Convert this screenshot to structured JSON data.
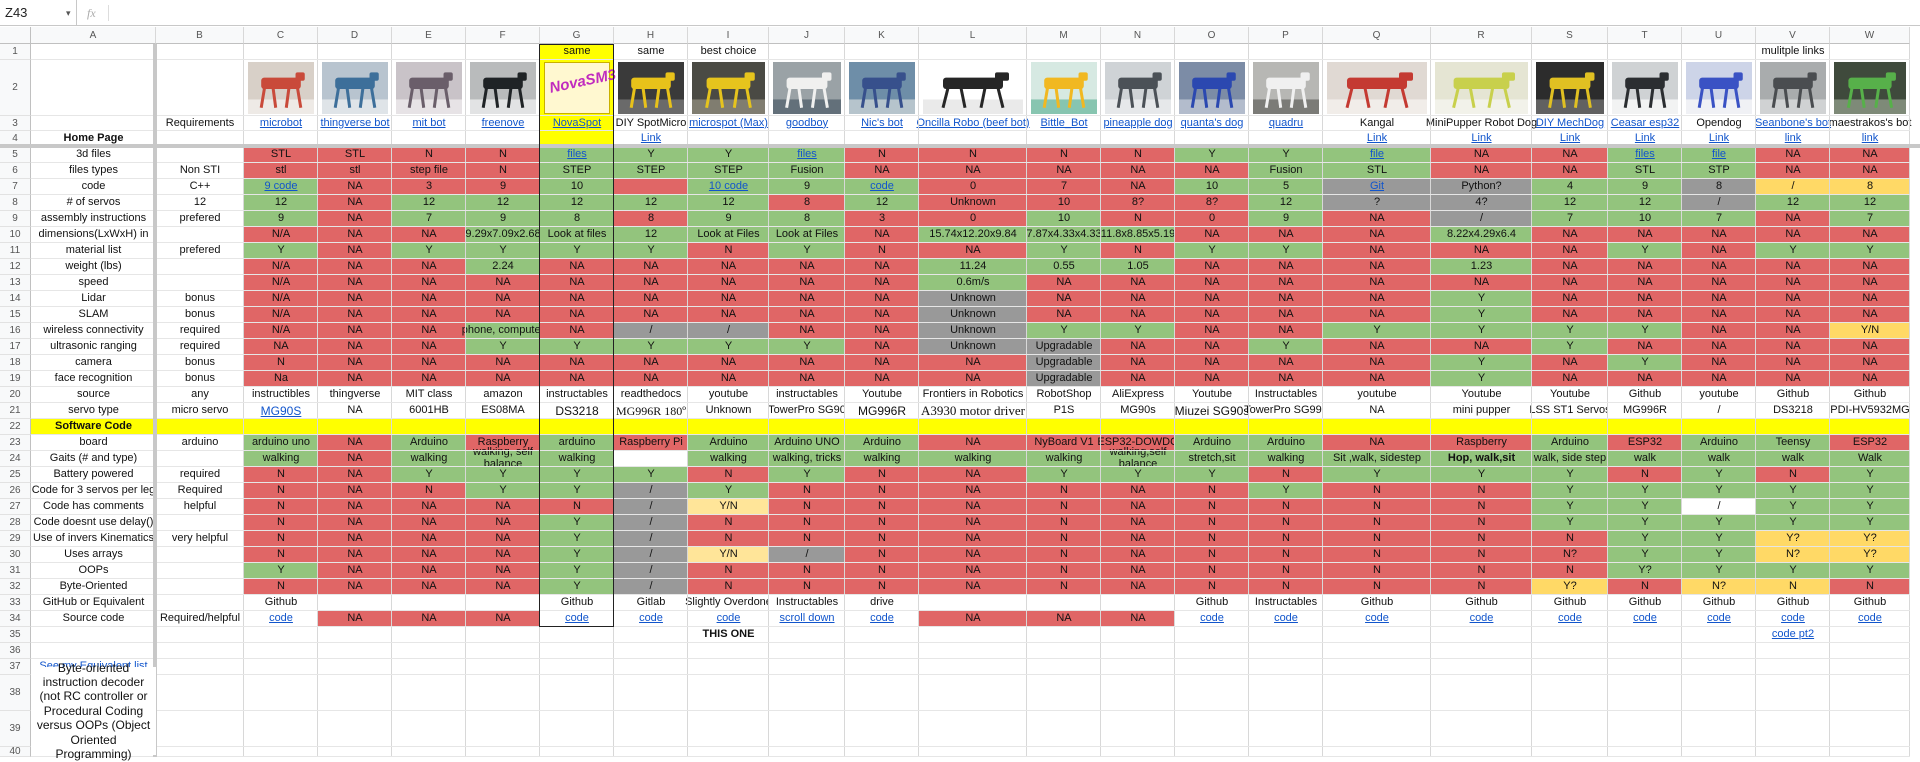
{
  "name_box": "Z43",
  "fx_label": "fx",
  "colors": {
    "red": "#e06666",
    "green": "#93c47d",
    "yellow": "#ffff00",
    "gray": "#999999",
    "light_yellow": "#ffe599",
    "orange_yellow": "#ffd966",
    "white": "#ffffff",
    "link": "#1155cc",
    "header_bg": "#f8f9fa",
    "selection": "#1a73e8"
  },
  "columns": [
    "A",
    "B",
    "C",
    "D",
    "E",
    "F",
    "G",
    "H",
    "I",
    "J",
    "K",
    "L",
    "M",
    "N",
    "O",
    "P",
    "Q",
    "R",
    "S",
    "T",
    "U",
    "V",
    "W"
  ],
  "rows": [
    "1",
    "2",
    "3",
    "4",
    "5",
    "6",
    "7",
    "8",
    "9",
    "10",
    "11",
    "12",
    "13",
    "14",
    "15",
    "16",
    "17",
    "18",
    "19",
    "20",
    "21",
    "22",
    "23",
    "24",
    "25",
    "26",
    "27",
    "28",
    "29",
    "30",
    "31",
    "32",
    "33",
    "34",
    "35",
    "36",
    "37",
    "38",
    "39",
    "40"
  ],
  "row1": {
    "G": "same",
    "H": "same",
    "I": "best choice",
    "V": "mulitple links"
  },
  "row2_images": {
    "C": "photo-robot-white-red",
    "D": "photo-robot-blue-frame",
    "E": "photo-robot-gray-legs",
    "F": "photo-robot-black",
    "G": "novaspot-logo",
    "H": "photo-robot-yellow-black",
    "I": "photo-robot-yellow-legs",
    "J": "photo-robot-white-dog",
    "K": "photo-robot-hand-held",
    "L": "photo-robot-oncilla",
    "M": "photo-robot-bittle",
    "N": "photo-robot-gray-dog",
    "O": "photo-robot-blue-dog",
    "P": "photo-robot-white-frame",
    "Q": "photo-robot-white-red-large",
    "R": "photo-robot-minipupper",
    "S": "photo-robot-mechdog",
    "T": "photo-robot-black-white",
    "U": "photo-robot-blue-white",
    "V": "photo-robot-dark-gray",
    "W": "photo-robot-green-dog"
  },
  "novaspot_logo_text": "NovaSM3",
  "row3": {
    "B": "Requirements",
    "C": "microbot",
    "D": "thingverse bot",
    "E": "mit bot",
    "F": "freenove",
    "G": "NovaSpot",
    "H": "DIY SpotMicro",
    "I": "microspot (Max)",
    "J": "goodboy",
    "K": "Nic's bot",
    "L": "Oncilla Robo (beef bot)",
    "M": "Bittle_Bot",
    "N": "pineapple dog",
    "O": "quanta's dog",
    "P": "quadru",
    "Q": "Kangal",
    "R": "MiniPupper Robot Dog",
    "S": "DIY MechDog",
    "T": "Ceasar esp32",
    "U": "Opendog",
    "V": "Seanbone's bot",
    "W": "maestrakos's bot"
  },
  "row4": {
    "A": "Home Page",
    "H": "Link",
    "Q": "Link",
    "R": "Link",
    "S": "Link",
    "T": "Link",
    "U": "Link",
    "V": "link",
    "W": "link"
  },
  "row5": {
    "A": "3d files",
    "C": "STL",
    "D": "STL",
    "E": "N",
    "F": "N",
    "G": "files",
    "H": "Y",
    "I": "Y",
    "J": "files",
    "K": "N",
    "L": "N",
    "M": "N",
    "N": "N",
    "O": "Y",
    "P": "Y",
    "Q": "file",
    "R": "NA",
    "S": "NA",
    "T": "files",
    "U": "file",
    "V": "NA",
    "W": "NA"
  },
  "row6": {
    "A": "files types",
    "B": "Non STI",
    "C": "stl",
    "D": "stl",
    "E": "step file",
    "F": "N",
    "G": "STEP",
    "H": "STEP",
    "I": "STEP",
    "J": "Fusion",
    "K": "NA",
    "L": "NA",
    "M": "NA",
    "N": "NA",
    "O": "NA",
    "P": "Fusion",
    "Q": "STL",
    "R": "NA",
    "S": "NA",
    "T": "STL",
    "U": "STP",
    "V": "NA",
    "W": "NA"
  },
  "row7": {
    "A": "code",
    "B": "C++",
    "C": "9 code",
    "D": "NA",
    "E": "3",
    "F": "9",
    "G": "10",
    "I": "10 code",
    "J": "9",
    "K": "code",
    "L": "0",
    "M": "7",
    "N": "NA",
    "O": "10",
    "P": "5",
    "Q": "Git",
    "R": "Python?",
    "S": "4",
    "T": "9",
    "U": "8",
    "V": "/",
    "W": "8"
  },
  "row8": {
    "A": "# of servos",
    "B": "12",
    "C": "12",
    "D": "NA",
    "E": "12",
    "F": "12",
    "G": "12",
    "H": "12",
    "I": "12",
    "J": "8",
    "K": "12",
    "L": "Unknown",
    "M": "10",
    "N": "8?",
    "O": "8?",
    "P": "12",
    "Q": "?",
    "R": "4?",
    "S": "12",
    "T": "12",
    "U": "/",
    "V": "12",
    "W": "12"
  },
  "row9": {
    "A": "assembly instructions",
    "B": "prefered",
    "C": "9",
    "D": "NA",
    "E": "7",
    "F": "9",
    "G": "8",
    "H": "8",
    "I": "9",
    "J": "8",
    "K": "3",
    "L": "0",
    "M": "10",
    "N": "N",
    "O": "0",
    "P": "9",
    "Q": "NA",
    "R": "/",
    "S": "7",
    "T": "10",
    "U": "7",
    "V": "NA",
    "W": "7"
  },
  "row10": {
    "A": "dimensions(LxWxH) in",
    "C": "N/A",
    "D": "NA",
    "E": "NA",
    "F": "9.29x7.09x2.68",
    "G": "Look at files",
    "H": "12",
    "I": "Look at Files",
    "J": "Look at Files",
    "K": "NA",
    "L": "15.74x12.20x9.84",
    "M": "7.87x4.33x4.33",
    "N": "11.8x8.85x5.19",
    "O": "NA",
    "P": "NA",
    "Q": "NA",
    "R": "8.22x4.29x6.4",
    "S": "NA",
    "T": "NA",
    "U": "NA",
    "V": "NA",
    "W": "NA"
  },
  "row11": {
    "A": "material list",
    "B": "prefered",
    "C": "Y",
    "D": "NA",
    "E": "Y",
    "F": "Y",
    "G": "Y",
    "H": "Y",
    "I": "N",
    "J": "Y",
    "K": "N",
    "L": "NA",
    "M": "Y",
    "N": "N",
    "O": "Y",
    "P": "Y",
    "Q": "NA",
    "R": "NA",
    "S": "NA",
    "T": "Y",
    "U": "NA",
    "V": "Y",
    "W": "Y"
  },
  "row12": {
    "A": "weight (lbs)",
    "C": "N/A",
    "D": "NA",
    "E": "NA",
    "F": "2.24",
    "G": "NA",
    "H": "NA",
    "I": "NA",
    "J": "NA",
    "K": "NA",
    "L": "11.24",
    "M": "0.55",
    "N": "1.05",
    "O": "NA",
    "P": "NA",
    "Q": "NA",
    "R": "1.23",
    "S": "NA",
    "T": "NA",
    "U": "NA",
    "V": "NA",
    "W": "NA"
  },
  "row13": {
    "A": "speed",
    "C": "N/A",
    "D": "NA",
    "E": "NA",
    "F": "NA",
    "G": "NA",
    "H": "NA",
    "I": "NA",
    "J": "NA",
    "K": "NA",
    "L": "0.6m/s",
    "M": "NA",
    "N": "NA",
    "O": "NA",
    "P": "NA",
    "Q": "NA",
    "R": "NA",
    "S": "NA",
    "T": "NA",
    "U": "NA",
    "V": "NA",
    "W": "NA"
  },
  "row14": {
    "A": "Lidar",
    "B": "bonus",
    "C": "N/A",
    "D": "NA",
    "E": "NA",
    "F": "NA",
    "G": "NA",
    "H": "NA",
    "I": "NA",
    "J": "NA",
    "K": "NA",
    "L": "Unknown",
    "M": "NA",
    "N": "NA",
    "O": "NA",
    "P": "NA",
    "Q": "NA",
    "R": "Y",
    "S": "NA",
    "T": "NA",
    "U": "NA",
    "V": "NA",
    "W": "NA"
  },
  "row15": {
    "A": "SLAM",
    "B": "bonus",
    "C": "N/A",
    "D": "NA",
    "E": "NA",
    "F": "NA",
    "G": "NA",
    "H": "NA",
    "I": "NA",
    "J": "NA",
    "K": "NA",
    "L": "Unknown",
    "M": "NA",
    "N": "NA",
    "O": "NA",
    "P": "NA",
    "Q": "NA",
    "R": "Y",
    "S": "NA",
    "T": "NA",
    "U": "NA",
    "V": "NA",
    "W": "NA"
  },
  "row16": {
    "A": "wireless connectivity",
    "B": "required",
    "C": "N/A",
    "D": "NA",
    "E": "NA",
    "F": "phone, computer",
    "G": "NA",
    "H": "/",
    "I": "/",
    "J": "NA",
    "K": "NA",
    "L": "Unknown",
    "M": "Y",
    "N": "Y",
    "O": "NA",
    "P": "NA",
    "Q": "Y",
    "R": "Y",
    "S": "Y",
    "T": "Y",
    "U": "NA",
    "V": "NA",
    "W": "Y/N"
  },
  "row17": {
    "A": "ultrasonic ranging",
    "B": "required",
    "C": "NA",
    "D": "NA",
    "E": "NA",
    "F": "Y",
    "G": "Y",
    "H": "Y",
    "I": "Y",
    "J": "Y",
    "K": "NA",
    "L": "Unknown",
    "M": "Upgradable",
    "N": "NA",
    "O": "NA",
    "P": "Y",
    "Q": "NA",
    "R": "NA",
    "S": "Y",
    "T": "NA",
    "U": "NA",
    "V": "NA",
    "W": "NA"
  },
  "row18": {
    "A": "camera",
    "B": "bonus",
    "C": "N",
    "D": "NA",
    "E": "NA",
    "F": "NA",
    "G": "NA",
    "H": "NA",
    "I": "NA",
    "J": "NA",
    "K": "NA",
    "L": "NA",
    "M": "Upgradable",
    "N": "NA",
    "O": "NA",
    "P": "NA",
    "Q": "NA",
    "R": "Y",
    "S": "NA",
    "T": "Y",
    "U": "NA",
    "V": "NA",
    "W": "NA"
  },
  "row19": {
    "A": "face recognition",
    "B": "bonus",
    "C": "Na",
    "D": "NA",
    "E": "NA",
    "F": "NA",
    "G": "NA",
    "H": "NA",
    "I": "NA",
    "J": "NA",
    "K": "NA",
    "L": "NA",
    "M": "Upgradable",
    "N": "NA",
    "O": "NA",
    "P": "NA",
    "Q": "NA",
    "R": "Y",
    "S": "NA",
    "T": "NA",
    "U": "NA",
    "V": "NA",
    "W": "NA"
  },
  "row20": {
    "A": "source",
    "B": "any",
    "C": "instructibles",
    "D": "thingverse",
    "E": "MIT class",
    "F": "amazon",
    "G": "instructables",
    "H": "readthedocs",
    "I": "youtube",
    "J": "instructables",
    "K": "Youtube",
    "L": "Frontiers in Robotics",
    "M": "RobotShop",
    "N": "AliExpress",
    "O": "Youtube",
    "P": "Instructables",
    "Q": "youtube",
    "R": "Youtube",
    "S": "Youtube",
    "T": "Github",
    "U": "youtube",
    "V": "Github",
    "W": "Github"
  },
  "row21": {
    "A": "servo type",
    "B": "micro servo",
    "C": "MG90S",
    "D": "NA",
    "E": "6001HB",
    "F": "ES08MA",
    "G": "DS3218",
    "H": "MG996R 180º",
    "I": "Unknown",
    "J": "TowerPro SG90",
    "K": "MG996R",
    "L": "A3930 motor driver",
    "M": "P1S",
    "N": "MG90s",
    "O": "Miuzei SG90s",
    "P": "TowerPro SG995",
    "Q": "NA",
    "R": "mini pupper",
    "S": "LSS ST1 Servos",
    "T": "MG996R",
    "U": "/",
    "V": "DS3218",
    "W": "PDI-HV5932MG"
  },
  "row22": {
    "A": "Software Code"
  },
  "row23": {
    "A": "board",
    "B": "arduino",
    "C": "arduino uno",
    "D": "NA",
    "E": "Arduino",
    "F": "Raspberry",
    "G": "arduino",
    "H": "Raspberry Pi",
    "I": "Arduino",
    "J": "Arduino UNO",
    "K": "Arduino",
    "L": "NA",
    "M": "NyBoard V1",
    "N": "ESP32-DOWDQ",
    "O": "Arduino",
    "P": "Arduino",
    "Q": "NA",
    "R": "Raspberry",
    "S": "Arduino",
    "T": "ESP32",
    "U": "Arduino",
    "V": "Teensy",
    "W": "ESP32"
  },
  "row24": {
    "A": "Gaits (# and type)",
    "C": "walking",
    "D": "NA",
    "E": "walking",
    "F": "walking, self balance",
    "G": "walking",
    "H": "",
    "I": "walking",
    "J": "walking, tricks",
    "K": "walking",
    "L": "walking",
    "M": "walking",
    "N": "walking,self balance",
    "O": "stretch,sit",
    "P": "walking",
    "Q": "Sit ,walk, sidestep",
    "R": "Hop, walk,sit",
    "S": "walk, side step",
    "T": "walk",
    "U": "walk",
    "V": "walk",
    "W": "Walk"
  },
  "row25": {
    "A": "Battery powered",
    "B": "required",
    "C": "N",
    "D": "NA",
    "E": "Y",
    "F": "Y",
    "G": "Y",
    "H": "Y",
    "I": "N",
    "J": "Y",
    "K": "N",
    "L": "NA",
    "M": "Y",
    "N": "Y",
    "O": "Y",
    "P": "N",
    "Q": "Y",
    "R": "Y",
    "S": "Y",
    "T": "N",
    "U": "Y",
    "V": "N",
    "W": "Y"
  },
  "row26": {
    "A": "Code for 3 servos per leg",
    "B": "Required",
    "C": "N",
    "D": "NA",
    "E": "N",
    "F": "Y",
    "G": "Y",
    "H": "/",
    "I": "Y",
    "J": "N",
    "K": "N",
    "L": "NA",
    "M": "N",
    "N": "NA",
    "O": "N",
    "P": "Y",
    "Q": "N",
    "R": "N",
    "S": "Y",
    "T": "Y",
    "U": "Y",
    "V": "Y",
    "W": "Y"
  },
  "row27": {
    "A": "Code has comments",
    "B": "helpful",
    "C": "N",
    "D": "NA",
    "E": "NA",
    "F": "NA",
    "G": "N",
    "H": "/",
    "I": "Y/N",
    "J": "N",
    "K": "N",
    "L": "NA",
    "M": "N",
    "N": "NA",
    "O": "N",
    "P": "N",
    "Q": "N",
    "R": "N",
    "S": "Y",
    "T": "Y",
    "U": "/",
    "V": "Y",
    "W": "Y"
  },
  "row28": {
    "A": "Code doesnt use delay()",
    "C": "N",
    "D": "NA",
    "E": "NA",
    "F": "NA",
    "G": "Y",
    "H": "/",
    "I": "N",
    "J": "N",
    "K": "N",
    "L": "NA",
    "M": "N",
    "N": "NA",
    "O": "N",
    "P": "N",
    "Q": "N",
    "R": "N",
    "S": "Y",
    "T": "Y",
    "U": "Y",
    "V": "Y",
    "W": "Y"
  },
  "row29": {
    "A": "Use of invers Kinematics",
    "B": "very helpful",
    "C": "N",
    "D": "NA",
    "E": "NA",
    "F": "NA",
    "G": "Y",
    "H": "/",
    "I": "N",
    "J": "N",
    "K": "N",
    "L": "NA",
    "M": "N",
    "N": "NA",
    "O": "N",
    "P": "N",
    "Q": "N",
    "R": "N",
    "S": "N",
    "T": "Y",
    "U": "Y",
    "V": "Y?",
    "W": "Y?"
  },
  "row30": {
    "A": "Uses arrays",
    "C": "N",
    "D": "NA",
    "E": "NA",
    "F": "NA",
    "G": "Y",
    "H": "/",
    "I": "Y/N",
    "J": "/",
    "K": "N",
    "L": "NA",
    "M": "N",
    "N": "NA",
    "O": "N",
    "P": "N",
    "Q": "N",
    "R": "N",
    "S": "N?",
    "T": "Y",
    "U": "Y",
    "V": "N?",
    "W": "Y?"
  },
  "row31": {
    "A": "OOPs",
    "C": "Y",
    "D": "NA",
    "E": "NA",
    "F": "NA",
    "G": "Y",
    "H": "/",
    "I": "N",
    "J": "N",
    "K": "N",
    "L": "NA",
    "M": "N",
    "N": "NA",
    "O": "N",
    "P": "N",
    "Q": "N",
    "R": "N",
    "S": "N",
    "T": "Y?",
    "U": "Y",
    "V": "Y",
    "W": "Y"
  },
  "row32": {
    "A": "Byte-Oriented",
    "C": "N",
    "D": "NA",
    "E": "NA",
    "F": "NA",
    "G": "Y",
    "H": "/",
    "I": "N",
    "J": "N",
    "K": "N",
    "L": "NA",
    "M": "N",
    "N": "NA",
    "O": "N",
    "P": "N",
    "Q": "N",
    "R": "N",
    "S": "Y?",
    "T": "N",
    "U": "N?",
    "V": "N",
    "W": "N"
  },
  "row33": {
    "A": "GitHub or Equivalent",
    "C": "Github",
    "G": "Github",
    "H": "Gitlab",
    "I": "Slightly Overdone",
    "J": "Instructables",
    "K": "drive",
    "O": "Github",
    "P": "Instructables",
    "Q": "Github",
    "R": "Github",
    "S": "Github",
    "T": "Github",
    "U": "Github",
    "V": "Github",
    "W": "Github"
  },
  "row34": {
    "A": "Source code",
    "B": "Required/helpful",
    "C": "code",
    "D": "NA",
    "E": "NA",
    "F": "NA",
    "G": "code",
    "H": "code",
    "I": "code",
    "J": "scroll down",
    "K": "code",
    "L": "NA",
    "M": "NA",
    "N": "NA",
    "O": "code",
    "P": "code",
    "Q": "code",
    "R": "code",
    "S": "code",
    "T": "code",
    "U": "code",
    "V": "code",
    "W": "code"
  },
  "row35": {
    "I": "THIS ONE",
    "V": "code pt2"
  },
  "row37": {
    "A": "See my Equivalent list"
  },
  "row38": {
    "A": "Byte-oriented instruction decoder (not RC controller or Procedural Coding versus OOPs (Object Oriented Programming)"
  }
}
